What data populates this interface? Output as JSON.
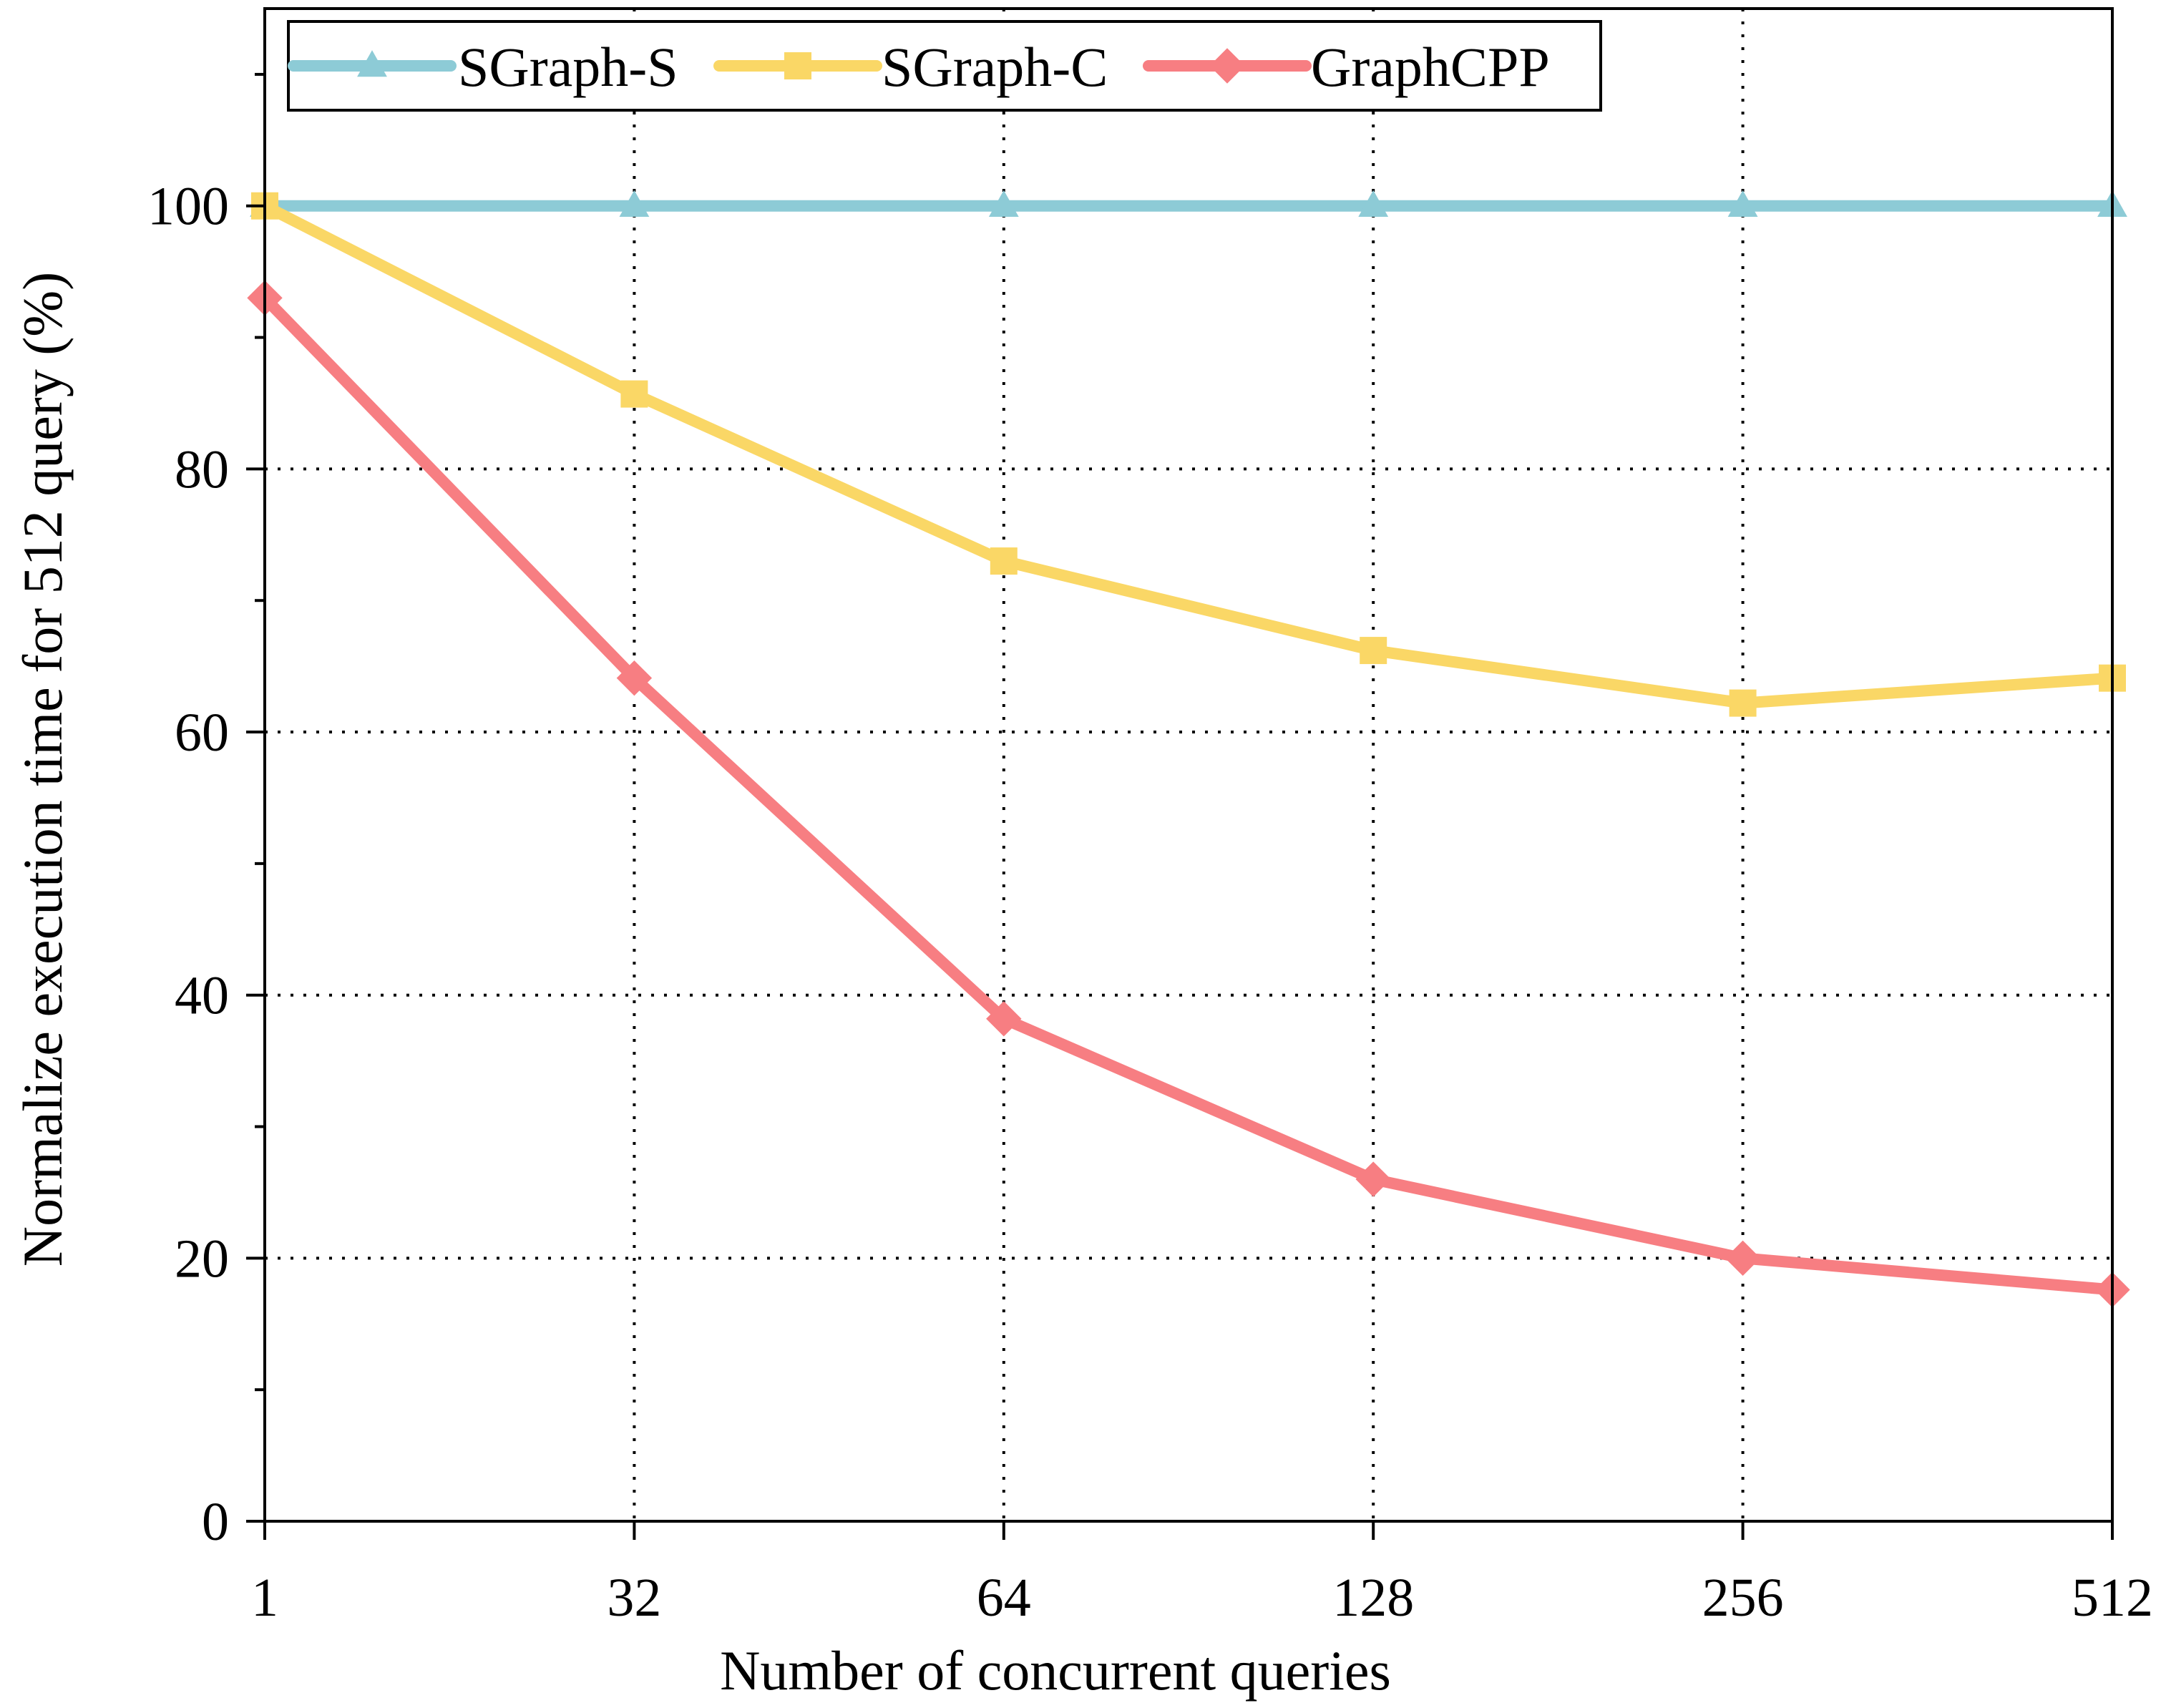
{
  "chart_data": {
    "type": "line",
    "title": "",
    "xlabel": "Number of concurrent queries",
    "ylabel": "Normalize execution time for 512 query (%)",
    "categories": [
      "1",
      "32",
      "64",
      "128",
      "256",
      "512"
    ],
    "ylim": [
      0,
      115
    ],
    "yticks": [
      0,
      20,
      40,
      60,
      80,
      100
    ],
    "yticks_minor": [
      10,
      30,
      50,
      70,
      90,
      110
    ],
    "grid": true,
    "legend_position": "top-left",
    "series": [
      {
        "name": "SGraph-S",
        "color": "#8DCBD6",
        "marker": "triangle",
        "values": [
          100,
          100,
          100,
          100,
          100,
          100
        ]
      },
      {
        "name": "SGraph-C",
        "color": "#FAD766",
        "marker": "square",
        "values": [
          100,
          85.7,
          73,
          66.2,
          62.2,
          64.1
        ]
      },
      {
        "name": "GraphCPP",
        "color": "#F77E82",
        "marker": "diamond",
        "values": [
          93,
          64.1,
          38.2,
          26,
          20,
          17.6
        ]
      }
    ]
  }
}
